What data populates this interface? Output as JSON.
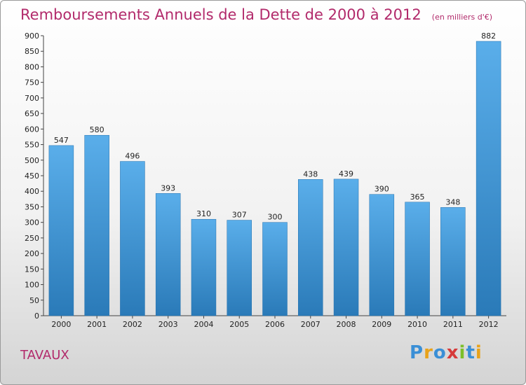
{
  "header": {
    "title": "Remboursements Annuels de la Dette de 2000 à 2012",
    "subtitle": "(en milliers d'€)"
  },
  "footer": {
    "commune": "TAVAUX",
    "logo_letters": [
      "P",
      "r",
      "o",
      "x",
      "i",
      "t",
      "i"
    ]
  },
  "colors": {
    "title": "#b22a6b",
    "bar_top": "#5aaeea",
    "bar_bottom": "#2a7ab8",
    "axis": "#444444"
  },
  "chart_data": {
    "type": "bar",
    "title": "Remboursements Annuels de la Dette de 2000 à 2012",
    "subtitle": "(en milliers d'€)",
    "categories": [
      "2000",
      "2001",
      "2002",
      "2003",
      "2004",
      "2005",
      "2006",
      "2007",
      "2008",
      "2009",
      "2010",
      "2011",
      "2012"
    ],
    "values": [
      547,
      580,
      496,
      393,
      310,
      307,
      300,
      438,
      439,
      390,
      365,
      348,
      882
    ],
    "ylim": [
      0,
      900
    ],
    "yticks": [
      0,
      50,
      100,
      150,
      200,
      250,
      300,
      350,
      400,
      450,
      500,
      550,
      600,
      650,
      700,
      750,
      800,
      850,
      900
    ],
    "grid": false,
    "legend": "none"
  }
}
